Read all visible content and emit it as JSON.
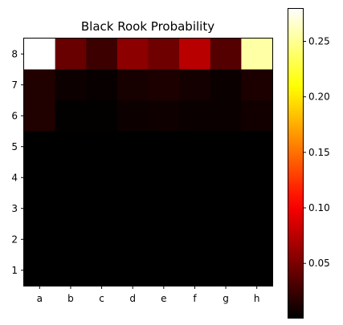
{
  "chart_data": {
    "type": "heatmap",
    "title": "Black Rook Probability",
    "xlabel": "",
    "ylabel": "",
    "x_categories": [
      "a",
      "b",
      "c",
      "d",
      "e",
      "f",
      "g",
      "h"
    ],
    "y_categories": [
      "8",
      "7",
      "6",
      "5",
      "4",
      "3",
      "2",
      "1"
    ],
    "values": [
      [
        0.28,
        0.043,
        0.025,
        0.057,
        0.045,
        0.075,
        0.035,
        0.255
      ],
      [
        0.014,
        0.006,
        0.004,
        0.01,
        0.012,
        0.009,
        0.005,
        0.012
      ],
      [
        0.014,
        0.002,
        0.002,
        0.006,
        0.007,
        0.005,
        0.005,
        0.008
      ],
      [
        0.001,
        0.001,
        0.001,
        0.001,
        0.001,
        0.001,
        0.001,
        0.001
      ],
      [
        0.001,
        0.001,
        0.001,
        0.001,
        0.001,
        0.001,
        0.001,
        0.001
      ],
      [
        0.001,
        0.001,
        0.001,
        0.001,
        0.001,
        0.001,
        0.001,
        0.001
      ],
      [
        0.001,
        0.001,
        0.001,
        0.001,
        0.001,
        0.001,
        0.001,
        0.001
      ],
      [
        0.001,
        0.001,
        0.001,
        0.001,
        0.001,
        0.001,
        0.001,
        0.001
      ]
    ],
    "colormap": "hot",
    "colorbar": {
      "range": [
        0.001,
        0.28
      ],
      "ticks": [
        0.05,
        0.1,
        0.15,
        0.2,
        0.25
      ],
      "tick_labels": [
        "0.05",
        "0.10",
        "0.15",
        "0.20",
        "0.25"
      ]
    },
    "grid": false
  }
}
